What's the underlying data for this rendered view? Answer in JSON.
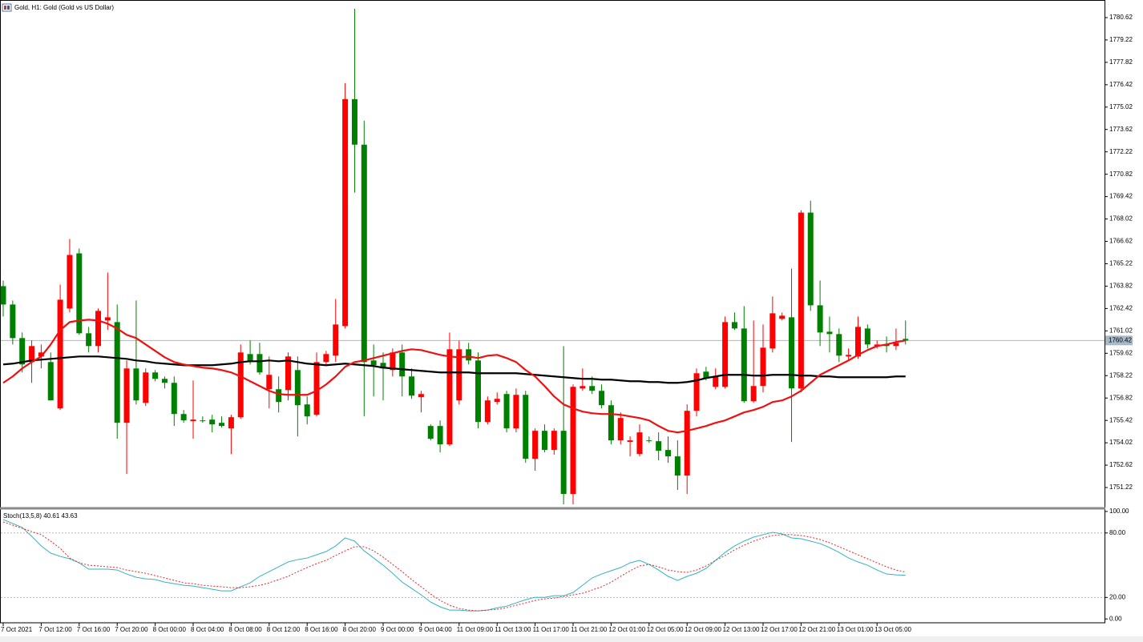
{
  "chart_data": [
    {
      "type": "candlestick",
      "title": "Gold, H1: Gold (Gold vs US Dollar)",
      "categories": [
        "7 Oct 2021",
        null,
        null,
        null,
        "7 Oct 12:00",
        null,
        null,
        null,
        "7 Oct 16:00",
        null,
        null,
        null,
        "7 Oct 20:00",
        null,
        null,
        null,
        "8 Oct 00:00",
        null,
        null,
        null,
        "8 Oct 04:00",
        null,
        null,
        null,
        "8 Oct 08:00",
        null,
        null,
        null,
        "8 Oct 12:00",
        null,
        null,
        null,
        "8 Oct 16:00",
        null,
        null,
        null,
        "8 Oct 20:00",
        null,
        null,
        null,
        "9 Oct 00:00",
        null,
        null,
        null,
        "9 Oct 04:00",
        null,
        null,
        null,
        "11 Oct 09:00",
        null,
        null,
        null,
        "11 Oct 13:00",
        null,
        null,
        null,
        "11 Oct 17:00",
        null,
        null,
        null,
        "11 Oct 21:00",
        null,
        null,
        null,
        "12 Oct 01:00",
        null,
        null,
        null,
        "12 Oct 05:00",
        null,
        null,
        null,
        "12 Oct 09:00",
        null,
        null,
        null,
        "12 Oct 13:00",
        null,
        null,
        null,
        "12 Oct 17:00",
        null,
        null,
        null,
        "12 Oct 21:00",
        null,
        null,
        null,
        "13 Oct 01:00",
        null,
        null,
        null,
        "13 Oct 05:00",
        null,
        null,
        null
      ],
      "open": [
        1763.82,
        1762.67,
        1760.57,
        1759.07,
        1759.42,
        1759.07,
        1756.17,
        1762.42,
        1765.87,
        1760.87,
        1760.07,
        1761.67,
        1761.57,
        1755.27,
        1758.67,
        1756.52,
        1758.42,
        1758.02,
        1757.77,
        1755.82,
        1755.37,
        1755.42,
        1755.47,
        1755.27,
        1754.92,
        1755.62,
        1759.57,
        1759.57,
        1757.37,
        1757.37,
        1757.32,
        1758.57,
        1756.42,
        1755.77,
        1759.07,
        1759.47,
        1761.32,
        1775.52,
        1772.67,
        1759.17,
        1759.02,
        1758.57,
        1759.67,
        1758.17,
        1756.87,
        1755.07,
        1755.07,
        1753.92,
        1756.67,
        1759.87,
        1759.17,
        1755.32,
        1756.57,
        1757.07,
        1754.92,
        1757.02,
        1753.02,
        1754.77,
        1753.57,
        1754.77,
        1750.82,
        1757.42,
        1757.57,
        1757.27,
        1756.37,
        1754.17,
        1754.07,
        1753.32,
        1754.17,
        1754.12,
        1753.57,
        1753.17,
        1751.97,
        1756.02,
        1758.47,
        1757.52,
        1757.52,
        1761.57,
        1761.17,
        1756.62,
        1757.57,
        1759.92,
        1761.77,
        1761.87,
        1757.42,
        1768.42,
        1762.62,
        1760.97,
        1760.82,
        1759.42,
        1759.42,
        1761.17,
        1760.07,
        1760.17,
        1760.07,
        1760.52
      ],
      "high": [
        1764.17,
        1762.92,
        1760.92,
        1760.42,
        1760.17,
        1759.67,
        1763.92,
        1766.77,
        1766.17,
        1761.27,
        1762.42,
        1764.67,
        1762.67,
        1759.17,
        1762.92,
        1758.67,
        1758.57,
        1758.17,
        1758.17,
        1756.07,
        1757.92,
        1755.67,
        1755.77,
        1755.67,
        1755.77,
        1760.17,
        1760.42,
        1760.27,
        1759.42,
        1758.17,
        1759.67,
        1759.42,
        1756.92,
        1759.67,
        1759.77,
        1763.02,
        1776.52,
        1781.17,
        1774.17,
        1760.17,
        1759.67,
        1759.92,
        1760.17,
        1758.67,
        1757.27,
        1755.17,
        1755.42,
        1760.92,
        1760.42,
        1760.27,
        1759.67,
        1756.92,
        1757.17,
        1757.27,
        1757.42,
        1757.27,
        1754.92,
        1755.17,
        1754.92,
        1760.07,
        1757.67,
        1758.67,
        1758.17,
        1757.67,
        1756.67,
        1755.92,
        1754.42,
        1755.17,
        1754.42,
        1754.67,
        1754.42,
        1754.17,
        1756.42,
        1758.67,
        1758.77,
        1758.67,
        1761.92,
        1762.17,
        1762.57,
        1761.67,
        1761.42,
        1763.17,
        1762.17,
        1764.92,
        1768.57,
        1769.17,
        1764.17,
        1761.92,
        1761.17,
        1759.92,
        1761.92,
        1761.42,
        1760.42,
        1760.67,
        1761.17,
        1761.67
      ],
      "low": [
        1761.92,
        1760.17,
        1758.42,
        1757.77,
        1758.67,
        1756.67,
        1756.07,
        1762.17,
        1760.77,
        1759.67,
        1759.67,
        1761.07,
        1754.27,
        1752.07,
        1756.42,
        1756.32,
        1757.87,
        1757.42,
        1755.07,
        1755.27,
        1754.27,
        1755.27,
        1754.67,
        1754.97,
        1753.32,
        1755.52,
        1758.92,
        1758.27,
        1756.17,
        1755.92,
        1756.67,
        1754.42,
        1755.17,
        1755.67,
        1758.87,
        1759.07,
        1761.17,
        1769.67,
        1755.67,
        1756.92,
        1756.67,
        1758.17,
        1756.92,
        1756.77,
        1755.92,
        1754.17,
        1753.42,
        1753.82,
        1756.42,
        1758.92,
        1754.92,
        1755.17,
        1756.42,
        1754.67,
        1754.67,
        1752.77,
        1752.27,
        1753.42,
        1753.27,
        1750.17,
        1750.17,
        1757.27,
        1757.07,
        1756.17,
        1753.92,
        1753.92,
        1753.17,
        1753.17,
        1754.02,
        1752.92,
        1752.77,
        1751.07,
        1750.82,
        1755.67,
        1757.92,
        1757.37,
        1757.42,
        1761.07,
        1756.52,
        1756.52,
        1757.17,
        1759.67,
        1761.67,
        1754.07,
        1757.17,
        1762.27,
        1760.07,
        1759.67,
        1759.07,
        1759.17,
        1759.27,
        1759.92,
        1759.92,
        1759.67,
        1759.82,
        1760.17
      ],
      "close": [
        1762.67,
        1760.57,
        1758.92,
        1760.07,
        1759.67,
        1756.67,
        1762.97,
        1765.77,
        1760.87,
        1760.07,
        1762.27,
        1761.87,
        1755.27,
        1758.67,
        1756.67,
        1758.42,
        1758.02,
        1757.77,
        1755.82,
        1755.42,
        1755.47,
        1755.37,
        1755.17,
        1755.07,
        1755.62,
        1759.67,
        1759.07,
        1758.42,
        1758.27,
        1756.57,
        1759.42,
        1756.37,
        1755.67,
        1759.07,
        1759.57,
        1761.42,
        1775.52,
        1772.67,
        1759.07,
        1758.87,
        1758.67,
        1759.67,
        1758.17,
        1756.97,
        1757.07,
        1754.27,
        1753.92,
        1759.87,
        1759.87,
        1759.17,
        1755.32,
        1756.67,
        1756.77,
        1754.92,
        1757.02,
        1753.02,
        1754.77,
        1753.57,
        1754.77,
        1750.82,
        1757.52,
        1757.57,
        1757.27,
        1756.37,
        1754.17,
        1755.57,
        1754.17,
        1754.67,
        1754.12,
        1753.52,
        1753.17,
        1751.97,
        1756.02,
        1758.37,
        1758.07,
        1758.17,
        1761.57,
        1761.17,
        1756.62,
        1757.57,
        1759.97,
        1762.12,
        1761.97,
        1757.42,
        1768.42,
        1762.62,
        1760.92,
        1760.82,
        1759.47,
        1759.52,
        1761.27,
        1760.17,
        1760.17,
        1760.07,
        1760.27,
        1760.42
      ],
      "up_color": "#ff0000",
      "down_color": "#008000",
      "lines": [
        {
          "color": "#000000",
          "values": [
            1758.92,
            1758.97,
            1759.07,
            1759.17,
            1759.22,
            1759.27,
            1759.32,
            1759.37,
            1759.42,
            1759.42,
            1759.42,
            1759.37,
            1759.32,
            1759.27,
            1759.17,
            1759.12,
            1759.02,
            1758.97,
            1758.92,
            1758.87,
            1758.87,
            1758.87,
            1758.87,
            1758.92,
            1758.97,
            1759.07,
            1759.12,
            1759.12,
            1759.17,
            1759.12,
            1759.17,
            1759.07,
            1758.97,
            1758.92,
            1758.87,
            1758.92,
            1758.97,
            1758.92,
            1758.87,
            1758.82,
            1758.72,
            1758.67,
            1758.62,
            1758.57,
            1758.52,
            1758.47,
            1758.42,
            1758.42,
            1758.42,
            1758.42,
            1758.37,
            1758.37,
            1758.37,
            1758.37,
            1758.37,
            1758.32,
            1758.27,
            1758.22,
            1758.17,
            1758.12,
            1758.07,
            1758.02,
            1758.02,
            1757.97,
            1757.97,
            1757.92,
            1757.87,
            1757.87,
            1757.82,
            1757.82,
            1757.77,
            1757.77,
            1757.82,
            1757.92,
            1758.07,
            1758.17,
            1758.27,
            1758.27,
            1758.27,
            1758.22,
            1758.22,
            1758.27,
            1758.27,
            1758.27,
            1758.22,
            1758.22,
            1758.17,
            1758.17,
            1758.12,
            1758.12,
            1758.12,
            1758.12,
            1758.12,
            1758.12,
            1758.17,
            1758.17
          ]
        },
        {
          "color": "#ee1111",
          "values": [
            1757.77,
            1758.17,
            1758.67,
            1759.07,
            1759.42,
            1760.17,
            1761.07,
            1761.57,
            1761.67,
            1761.72,
            1761.67,
            1761.47,
            1761.17,
            1760.77,
            1760.57,
            1760.17,
            1759.77,
            1759.37,
            1759.07,
            1758.92,
            1758.82,
            1758.72,
            1758.67,
            1758.57,
            1758.42,
            1758.17,
            1757.87,
            1757.57,
            1757.27,
            1757.07,
            1757.02,
            1757.02,
            1757.02,
            1757.27,
            1757.67,
            1758.17,
            1758.77,
            1759.07,
            1759.17,
            1759.32,
            1759.47,
            1759.62,
            1759.77,
            1759.87,
            1759.82,
            1759.67,
            1759.52,
            1759.42,
            1759.37,
            1759.42,
            1759.32,
            1759.47,
            1759.52,
            1759.32,
            1759.07,
            1758.57,
            1758.17,
            1757.57,
            1756.92,
            1756.42,
            1756.17,
            1755.97,
            1755.87,
            1755.82,
            1755.82,
            1755.77,
            1755.67,
            1755.57,
            1755.42,
            1755.07,
            1754.77,
            1754.67,
            1754.77,
            1754.92,
            1755.07,
            1755.27,
            1755.42,
            1755.67,
            1755.92,
            1756.07,
            1756.27,
            1756.57,
            1756.67,
            1756.92,
            1757.27,
            1757.77,
            1758.27,
            1758.57,
            1758.87,
            1759.17,
            1759.52,
            1759.82,
            1760.07,
            1760.17,
            1760.32,
            1760.42
          ]
        }
      ],
      "last_price": 1760.42,
      "last_price_color": "#a9b8c6",
      "ylim": [
        1749.97,
        1781.67
      ],
      "yticks": [
        1751.22,
        1752.62,
        1754.02,
        1755.42,
        1756.82,
        1758.22,
        1759.62,
        1761.02,
        1762.42,
        1763.82,
        1765.22,
        1766.62,
        1768.02,
        1769.42,
        1770.82,
        1772.22,
        1773.62,
        1775.02,
        1776.42,
        1777.82,
        1779.22,
        1780.62
      ]
    },
    {
      "type": "line",
      "title": "Stoch(13,5,8) 40.61 43.63",
      "series": [
        {
          "color": "#34b3bf",
          "dashed": false,
          "values": [
            92.5,
            88.8,
            85.1,
            76.9,
            67.9,
            61.2,
            58.2,
            56.0,
            52.2,
            46.3,
            46.3,
            46.3,
            45.5,
            41.8,
            38.8,
            37.3,
            36.6,
            34.3,
            32.8,
            31.3,
            30.6,
            29.1,
            27.6,
            26.1,
            26.1,
            29.9,
            33.6,
            39.6,
            44.0,
            48.5,
            53.0,
            55.2,
            56.7,
            59.7,
            62.7,
            67.9,
            75.4,
            72.4,
            63.4,
            56.7,
            50.0,
            42.5,
            34.3,
            28.4,
            22.4,
            15.7,
            11.2,
            8.2,
            8.2,
            7.5,
            7.5,
            8.2,
            10.4,
            11.9,
            14.9,
            17.9,
            20.1,
            20.1,
            21.6,
            21.6,
            24.6,
            31.3,
            38.1,
            41.8,
            44.8,
            47.8,
            52.2,
            54.5,
            50.7,
            45.5,
            39.6,
            35.8,
            39.6,
            42.5,
            47.0,
            54.5,
            61.9,
            67.9,
            72.4,
            76.1,
            78.4,
            80.6,
            79.1,
            75.4,
            74.6,
            72.4,
            70.1,
            66.4,
            61.9,
            56.7,
            53.0,
            50.0,
            45.5,
            41.8,
            41.0,
            40.61
          ]
        },
        {
          "color": "#ee2222",
          "dashed": true,
          "values": [
            90.3,
            87.3,
            84.3,
            81.3,
            78.4,
            72.4,
            65.7,
            56.7,
            52.2,
            50.0,
            49.3,
            48.5,
            47.8,
            45.5,
            44.0,
            42.5,
            40.3,
            38.1,
            35.8,
            33.6,
            32.8,
            31.3,
            30.6,
            29.9,
            29.1,
            29.1,
            29.9,
            31.3,
            33.6,
            36.6,
            39.6,
            44.0,
            47.8,
            51.5,
            54.5,
            59.0,
            63.4,
            67.2,
            67.2,
            63.4,
            57.5,
            50.7,
            44.0,
            36.6,
            29.9,
            23.1,
            17.2,
            12.7,
            9.7,
            8.2,
            7.5,
            8.2,
            9.0,
            10.4,
            12.7,
            14.9,
            17.2,
            18.7,
            19.4,
            20.9,
            22.4,
            23.9,
            26.9,
            29.9,
            34.3,
            39.6,
            44.8,
            49.3,
            50.7,
            48.5,
            45.5,
            44.0,
            43.3,
            45.5,
            49.3,
            54.5,
            59.0,
            64.2,
            68.7,
            72.4,
            75.4,
            77.6,
            78.4,
            78.4,
            77.6,
            76.1,
            73.9,
            70.9,
            67.2,
            63.4,
            59.7,
            56.0,
            52.2,
            48.5,
            45.5,
            43.63
          ]
        }
      ],
      "ylim": [
        -3.6,
        100.7
      ],
      "yticks": [
        {
          "value": 100,
          "label": "100.00"
        },
        {
          "value": 80,
          "label": "80.00"
        },
        {
          "value": 20,
          "label": "20.00"
        },
        {
          "value": 0,
          "label": "0.00"
        }
      ]
    }
  ]
}
